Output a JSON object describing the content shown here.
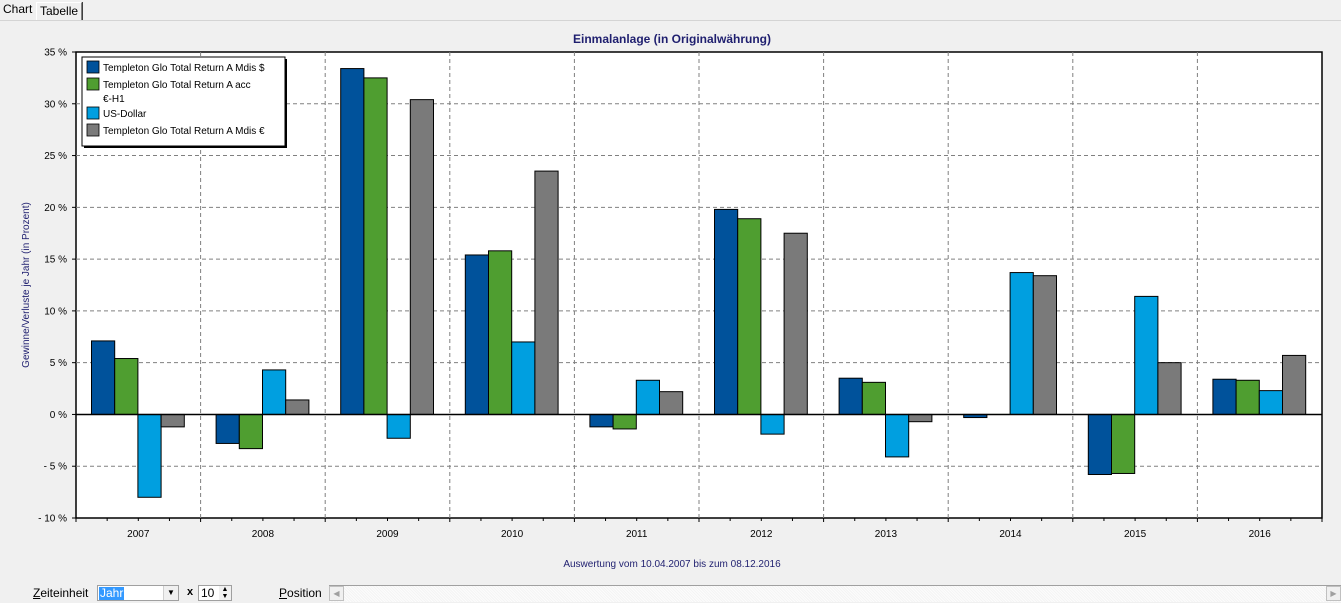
{
  "tabs": [
    {
      "label": "Chart",
      "active": true
    },
    {
      "label": "Tabelle",
      "active": false
    }
  ],
  "colors": {
    "series": [
      "#00529b",
      "#4f9e30",
      "#009fe0",
      "#7a7a7a"
    ],
    "title": "#1f1f6f",
    "grid": "#808080"
  },
  "chart_data": {
    "type": "bar",
    "title": "Einmalanlage (in Originalwährung)",
    "xlabel": "",
    "ylabel": "Gewinne/Verluste je Jahr (in Prozent)",
    "footer": "Auswertung vom 10.04.2007 bis zum 08.12.2016",
    "ylim": [
      -10,
      35
    ],
    "yticks": [
      35,
      30,
      25,
      20,
      15,
      10,
      5,
      0,
      -5,
      -10
    ],
    "ytick_labels": [
      "35 %",
      "30 %",
      "25 %",
      "20 %",
      "15 %",
      "10 %",
      "5 %",
      "0 %",
      "- 5 %",
      "- 10 %"
    ],
    "grid": true,
    "legend_position": "top-left",
    "categories": [
      "2007",
      "2008",
      "2009",
      "2010",
      "2011",
      "2012",
      "2013",
      "2014",
      "2015",
      "2016"
    ],
    "series": [
      {
        "name": "Templeton Glo Total Return A Mdis $",
        "legend_lines": [
          "Templeton Glo Total Return A Mdis $"
        ],
        "values": [
          7.1,
          -2.8,
          33.4,
          15.4,
          -1.2,
          19.8,
          3.5,
          -0.3,
          -5.8,
          3.4
        ]
      },
      {
        "name": "Templeton Glo Total Return A acc €-H1",
        "legend_lines": [
          "Templeton Glo Total Return A acc",
          "€-H1"
        ],
        "values": [
          5.4,
          -3.3,
          32.5,
          15.8,
          -1.4,
          18.9,
          3.1,
          0.0,
          -5.7,
          3.3
        ]
      },
      {
        "name": "US-Dollar",
        "legend_lines": [
          "US-Dollar"
        ],
        "values": [
          -8.0,
          4.3,
          -2.3,
          7.0,
          3.3,
          -1.9,
          -4.1,
          13.7,
          11.4,
          2.3
        ]
      },
      {
        "name": "Templeton Glo Total Return A Mdis €",
        "legend_lines": [
          "Templeton Glo Total Return A Mdis €"
        ],
        "values": [
          -1.2,
          1.4,
          30.4,
          23.5,
          2.2,
          17.5,
          -0.7,
          13.4,
          5.0,
          5.7
        ]
      }
    ]
  },
  "controls": {
    "zeiteinheit_label_underlined": "Z",
    "zeiteinheit_label_rest": "eiteinheit",
    "zeiteinheit_value": "Jahr",
    "multiplier_label": "x",
    "multiplier_value": "10",
    "position_label_underlined": "P",
    "position_label_rest": "osition"
  }
}
